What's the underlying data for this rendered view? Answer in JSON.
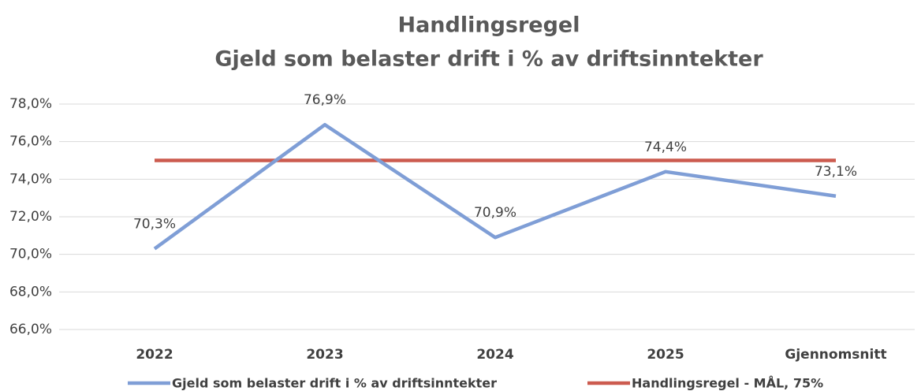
{
  "chart_data": {
    "type": "line",
    "title": "Handlingsregel",
    "subtitle": "Gjeld som belaster drift i % av driftsinntekter",
    "categories": [
      "2022",
      "2023",
      "2024",
      "2025",
      "Gjennomsnitt"
    ],
    "series": [
      {
        "name": "Gjeld som belaster drift i % av driftsinntekter",
        "color": "#7f9ed6",
        "values": [
          70.3,
          76.9,
          70.9,
          74.4,
          73.1
        ],
        "value_labels": [
          "70,3%",
          "76,9%",
          "70,9%",
          "74,4%",
          "73,1%"
        ]
      },
      {
        "name": "Handlingsregel - MÅL, 75%",
        "color": "#cc5b4f",
        "values": [
          75,
          75,
          75,
          75,
          75
        ]
      }
    ],
    "ylim": [
      66,
      78
    ],
    "yticks": [
      {
        "value": 66,
        "label": "66,0%"
      },
      {
        "value": 68,
        "label": "68,0%"
      },
      {
        "value": 70,
        "label": "70,0%"
      },
      {
        "value": 72,
        "label": "72,0%"
      },
      {
        "value": 74,
        "label": "74,0%"
      },
      {
        "value": 76,
        "label": "76,0%"
      },
      {
        "value": 78,
        "label": "78,0%"
      }
    ],
    "grid": true,
    "legend": "bottom"
  }
}
